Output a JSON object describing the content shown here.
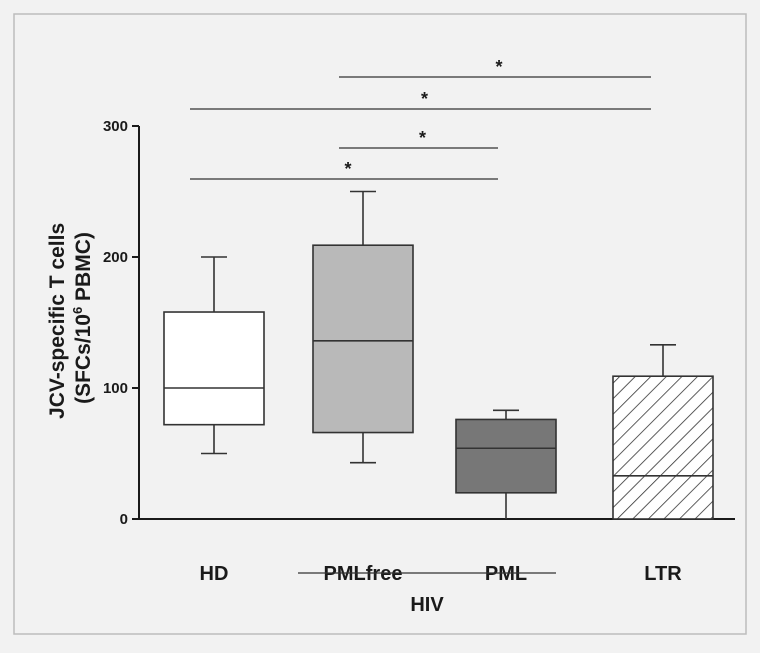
{
  "chart_data": {
    "type": "box",
    "ylabel_line1": "JCV-specific T cells",
    "ylabel_line2_prefix": "(SFCs/10",
    "ylabel_line2_sup": "6",
    "ylabel_line2_suffix": " PBMC)",
    "ylim": [
      0,
      300
    ],
    "yticks": [
      0,
      100,
      200,
      300
    ],
    "categories": [
      "HD",
      "PMLfree",
      "PML",
      "LTR"
    ],
    "group_label": "HIV",
    "group_members": [
      "PMLfree",
      "PML"
    ],
    "boxes": [
      {
        "category": "HD",
        "whisker_low": 50,
        "q1": 72,
        "median": 100,
        "q3": 158,
        "whisker_high": 200,
        "fill": "#ffffff",
        "pattern": "none"
      },
      {
        "category": "PMLfree",
        "whisker_low": 43,
        "q1": 66,
        "median": 136,
        "q3": 209,
        "whisker_high": 250,
        "fill": "#b9b9b9",
        "pattern": "none"
      },
      {
        "category": "PML",
        "whisker_low": 0,
        "q1": 20,
        "median": 54,
        "q3": 76,
        "whisker_high": 83,
        "fill": "#777777",
        "pattern": "none"
      },
      {
        "category": "LTR",
        "whisker_low": 0,
        "q1": 0,
        "median": 33,
        "q3": 109,
        "whisker_high": 133,
        "fill": "#ffffff",
        "pattern": "diagonal-hatch"
      }
    ],
    "significance": [
      {
        "from": "HD",
        "to": "PML",
        "label": "*"
      },
      {
        "from": "PMLfree",
        "to": "PML",
        "label": "*"
      },
      {
        "from": "HD",
        "to": "LTR",
        "label": "*"
      },
      {
        "from": "PMLfree",
        "to": "LTR",
        "label": "*"
      }
    ]
  }
}
